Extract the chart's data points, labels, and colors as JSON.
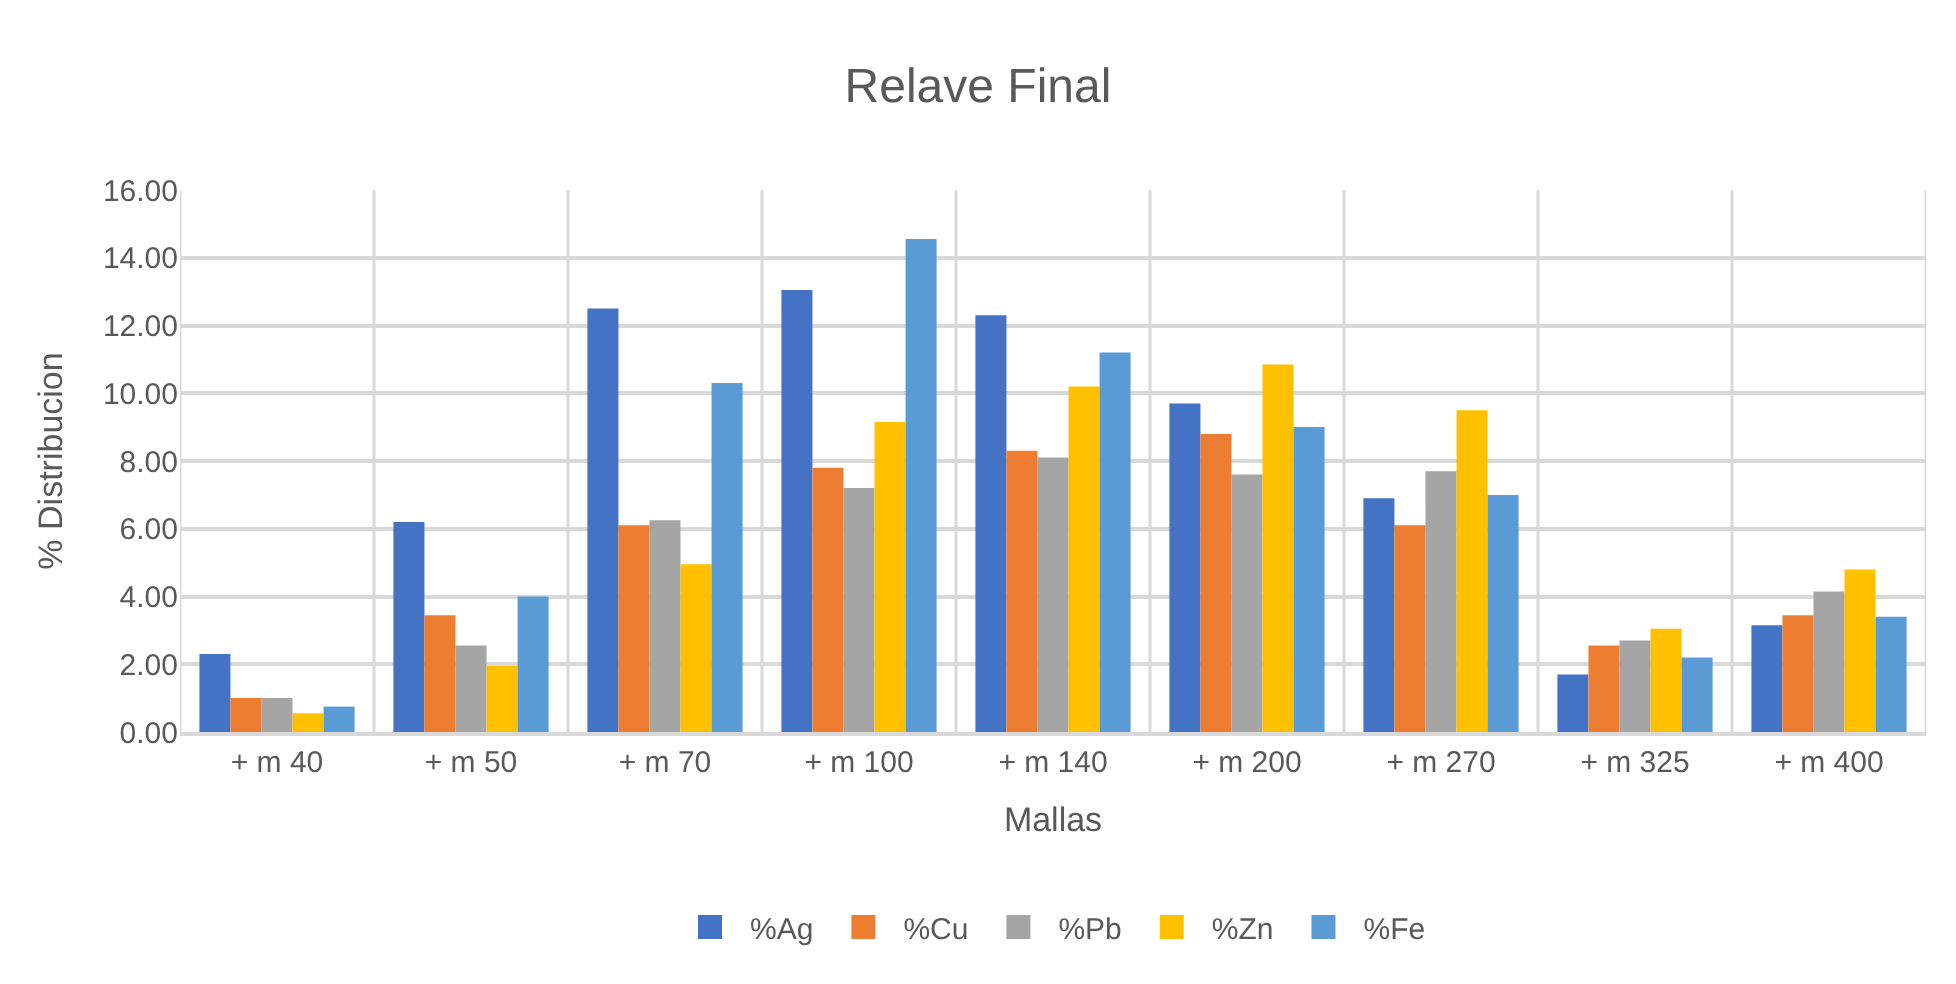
{
  "chart_data": {
    "type": "bar",
    "title": "Relave Final",
    "xlabel": "Mallas",
    "ylabel": "% Distribucion",
    "categories": [
      "+ m 40",
      "+ m 50",
      "+ m 70",
      "+ m 100",
      "+ m 140",
      "+ m 200",
      "+ m 270",
      "+ m 325",
      "+ m 400"
    ],
    "series": [
      {
        "name": "%Ag",
        "color": "#4472c4",
        "values": [
          2.3,
          6.2,
          12.5,
          13.05,
          12.3,
          9.7,
          6.9,
          1.7,
          3.15
        ]
      },
      {
        "name": "%Cu",
        "color": "#ed7d31",
        "values": [
          1.0,
          3.45,
          6.1,
          7.8,
          8.3,
          8.8,
          6.1,
          2.55,
          3.45
        ]
      },
      {
        "name": "%Pb",
        "color": "#a5a5a5",
        "values": [
          1.0,
          2.55,
          6.25,
          7.2,
          8.1,
          7.6,
          7.7,
          2.7,
          4.15
        ]
      },
      {
        "name": "%Zn",
        "color": "#ffc000",
        "values": [
          0.55,
          1.95,
          4.95,
          9.15,
          10.2,
          10.85,
          9.5,
          3.05,
          4.8
        ]
      },
      {
        "name": "%Fe",
        "color": "#5b9bd5",
        "values": [
          0.75,
          4.0,
          10.3,
          14.55,
          11.2,
          9.0,
          7.0,
          2.2,
          3.4
        ]
      }
    ],
    "ylim": [
      0,
      16
    ],
    "yticks": [
      {
        "value": 0,
        "label": "0.00"
      },
      {
        "value": 2,
        "label": "2.00"
      },
      {
        "value": 4,
        "label": "4.00"
      },
      {
        "value": 6,
        "label": "6.00"
      },
      {
        "value": 8,
        "label": "8.00"
      },
      {
        "value": 10,
        "label": "10.00"
      },
      {
        "value": 12,
        "label": "12.00"
      },
      {
        "value": 14,
        "label": "14.00"
      },
      {
        "value": 16,
        "label": "16.00"
      }
    ],
    "grid": true,
    "legend": "bottom"
  }
}
